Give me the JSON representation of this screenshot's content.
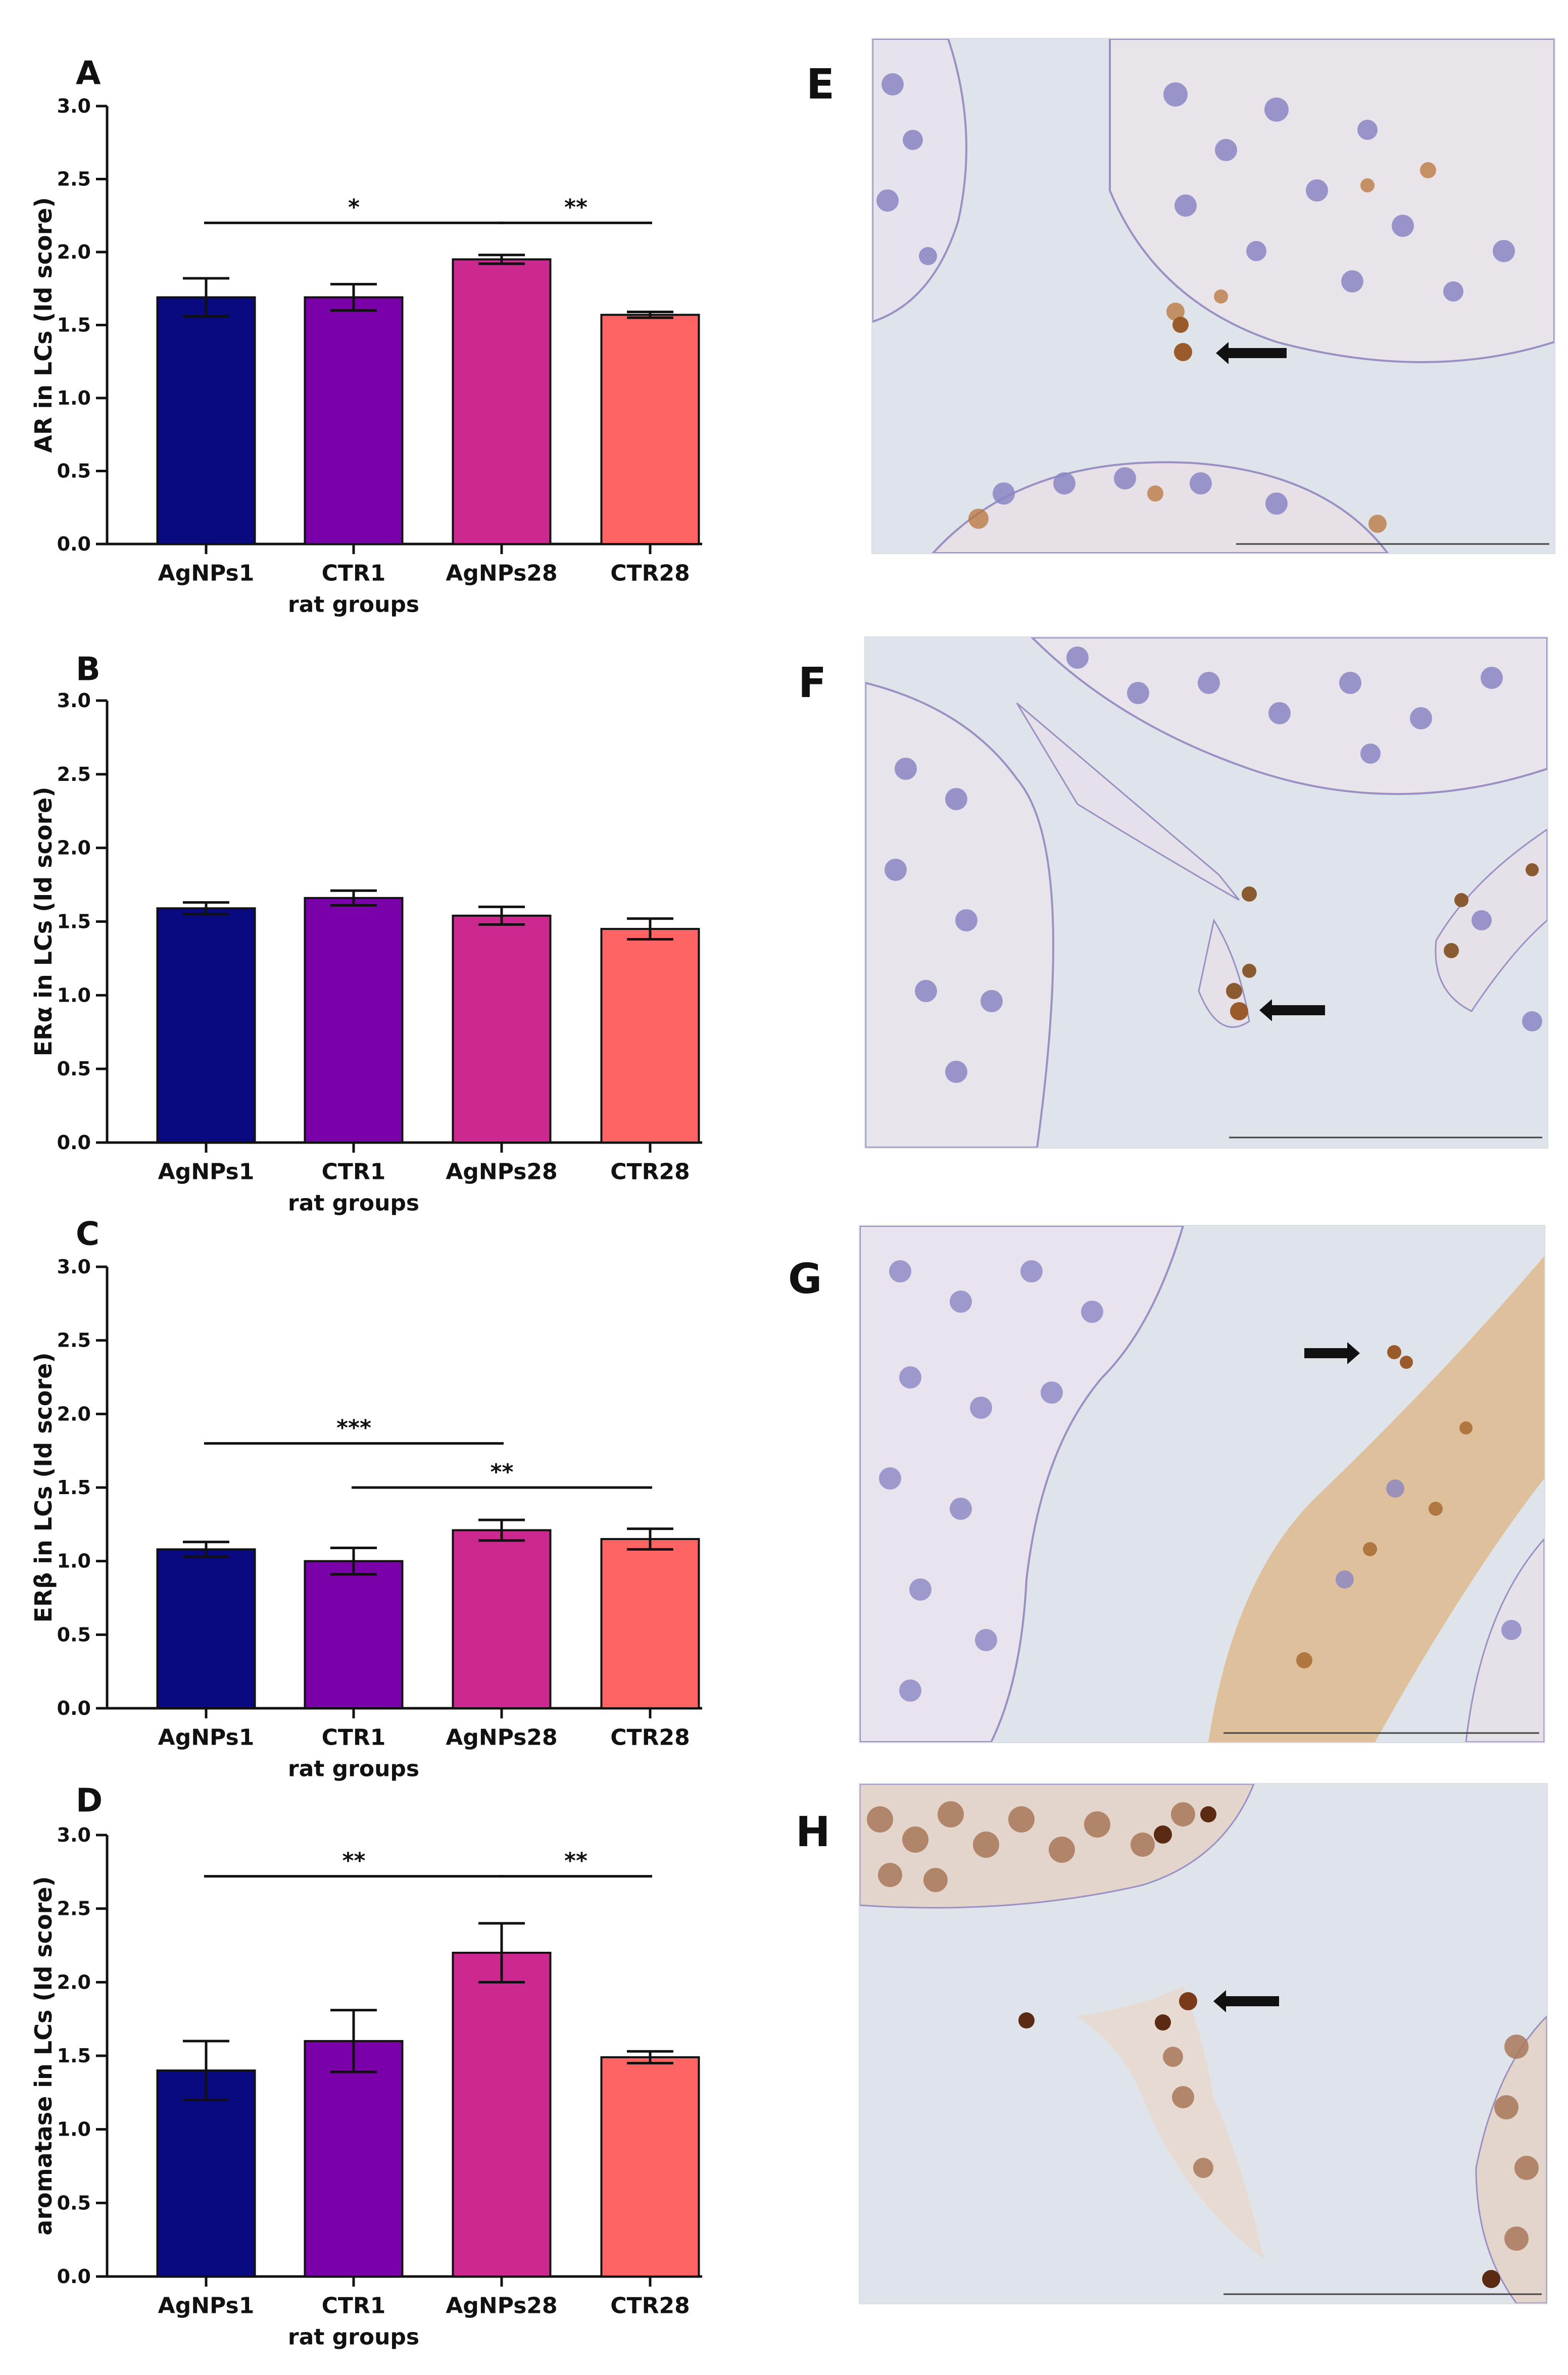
{
  "figure": {
    "micro_labels": [
      "E",
      "F",
      "G",
      "H"
    ],
    "micro_colors": {
      "background": "#dde3ea",
      "nucleus": "#8a86c4",
      "brown_stain": "#b8743a",
      "arrow": "#111111"
    }
  },
  "chart_data": [
    {
      "type": "bar",
      "panel": "A",
      "categories": [
        "AgNPs1",
        "CTR1",
        "AgNPs28",
        "CTR28"
      ],
      "values": [
        1.69,
        1.69,
        1.95,
        1.57
      ],
      "errors": [
        0.13,
        0.09,
        0.03,
        0.02
      ],
      "colors": [
        "#0a0a80",
        "#7a00aa",
        "#cc2890",
        "#ff6464"
      ],
      "xlabel": "rat groups",
      "ylabel": "AR in LCs (Id score)",
      "ylim": [
        0,
        3.0
      ],
      "yticks": [
        "0.0",
        "0.5",
        "1.0",
        "1.5",
        "2.0",
        "2.5",
        "3.0"
      ],
      "significance": [
        {
          "from": 0,
          "to": 2,
          "label": "*",
          "y": 2.2
        },
        {
          "from": 2,
          "to": 3,
          "label": "**",
          "y": 2.2
        }
      ]
    },
    {
      "type": "bar",
      "panel": "B",
      "categories": [
        "AgNPs1",
        "CTR1",
        "AgNPs28",
        "CTR28"
      ],
      "values": [
        1.59,
        1.66,
        1.54,
        1.45
      ],
      "errors": [
        0.04,
        0.05,
        0.06,
        0.07
      ],
      "colors": [
        "#0a0a80",
        "#7a00aa",
        "#cc2890",
        "#ff6464"
      ],
      "xlabel": "rat groups",
      "ylabel": "ERα in LCs (Id score)",
      "ylim": [
        0,
        3.0
      ],
      "yticks": [
        "0.0",
        "0.5",
        "1.0",
        "1.5",
        "2.0",
        "2.5",
        "3.0"
      ],
      "significance": []
    },
    {
      "type": "bar",
      "panel": "C",
      "categories": [
        "AgNPs1",
        "CTR1",
        "AgNPs28",
        "CTR28"
      ],
      "values": [
        1.08,
        1.0,
        1.21,
        1.15
      ],
      "errors": [
        0.05,
        0.09,
        0.07,
        0.07
      ],
      "colors": [
        "#0a0a80",
        "#7a00aa",
        "#cc2890",
        "#ff6464"
      ],
      "xlabel": "rat groups",
      "ylabel": "ERβ in LCs (Id score)",
      "ylim": [
        0,
        3.0
      ],
      "yticks": [
        "0.0",
        "0.5",
        "1.0",
        "1.5",
        "2.0",
        "2.5",
        "3.0"
      ],
      "significance": [
        {
          "from": 0,
          "to": 2,
          "label": "***",
          "y": 1.8
        },
        {
          "from": 1,
          "to": 3,
          "label": "**",
          "y": 1.5
        }
      ]
    },
    {
      "type": "bar",
      "panel": "D",
      "categories": [
        "AgNPs1",
        "CTR1",
        "AgNPs28",
        "CTR28"
      ],
      "values": [
        1.4,
        1.6,
        2.2,
        1.49
      ],
      "errors": [
        0.2,
        0.21,
        0.2,
        0.04
      ],
      "colors": [
        "#0a0a80",
        "#7a00aa",
        "#cc2890",
        "#ff6464"
      ],
      "xlabel": "rat groups",
      "ylabel": "aromatase in LCs (Id score)",
      "ylim": [
        0,
        3.0
      ],
      "yticks": [
        "0.0",
        "0.5",
        "1.0",
        "1.5",
        "2.0",
        "2.5",
        "3.0"
      ],
      "significance": [
        {
          "from": 0,
          "to": 2,
          "label": "**",
          "y": 2.72
        },
        {
          "from": 2,
          "to": 3,
          "label": "**",
          "y": 2.72
        }
      ]
    }
  ]
}
